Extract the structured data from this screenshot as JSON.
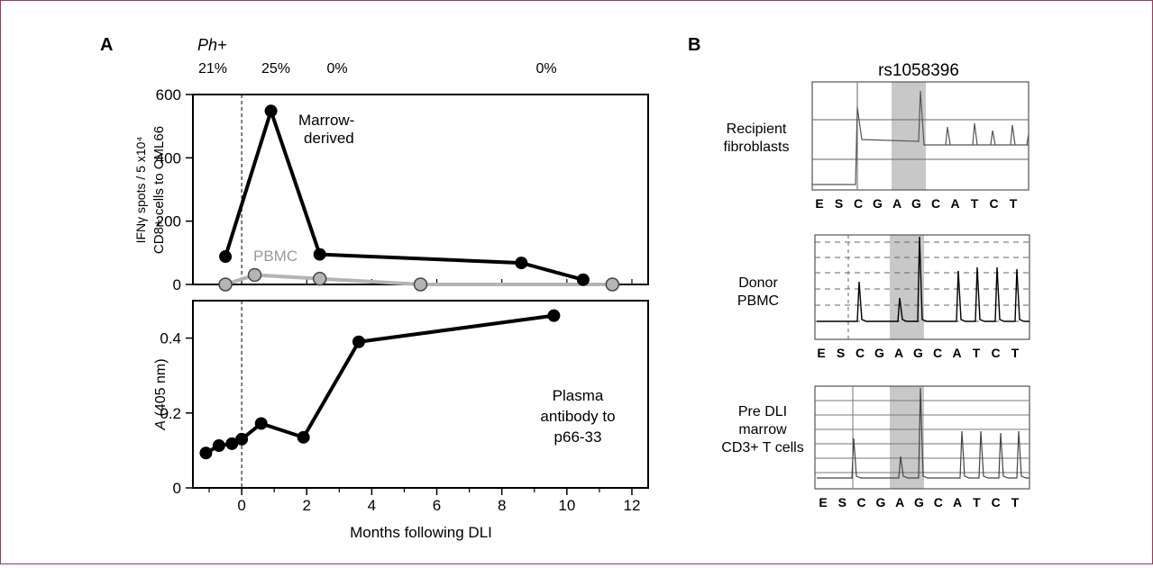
{
  "panels": {
    "a_label": "A",
    "b_label": "B"
  },
  "ph_row": {
    "label": "Ph+",
    "values": [
      "21%",
      "25%",
      "0%",
      "0%"
    ]
  },
  "colors": {
    "marrow": "#000000",
    "pbmc": "#b4b4b4",
    "shade": "#c8c8c8",
    "frame": "#a0365a"
  },
  "chart_data": [
    {
      "type": "line",
      "panel": "A (top)",
      "ylabel_line1": "IFNγ spots / 5 x10⁴",
      "ylabel_line2": "CD8+ cells to CML66",
      "xlim": [
        -1.5,
        12.5
      ],
      "ylim": [
        0,
        600
      ],
      "yticks": [
        0,
        200,
        400,
        600
      ],
      "series": [
        {
          "name": "Marrow-derived",
          "label_line1": "Marrow-",
          "label_line2": "derived",
          "x": [
            -0.5,
            0.9,
            2.4,
            8.6,
            10.5
          ],
          "y": [
            88,
            548,
            95,
            68,
            15
          ]
        },
        {
          "name": "PBMC",
          "x": [
            -0.5,
            0.4,
            2.4,
            5.5,
            11.4
          ],
          "y": [
            0,
            30,
            18,
            0,
            0
          ]
        }
      ]
    },
    {
      "type": "line",
      "panel": "A (bottom)",
      "ylabel_italic": "A",
      "ylabel_rest": " (405 nm)",
      "xlabel": "Months following DLI",
      "xlim": [
        -1.5,
        12.5
      ],
      "ylim": [
        0,
        0.5
      ],
      "xticks": [
        0,
        2,
        4,
        6,
        8,
        10,
        12
      ],
      "yticks": [
        "0",
        "0.2",
        "0.4"
      ],
      "series": [
        {
          "name": "Plasma antibody to p66-33",
          "label_lines": [
            "Plasma",
            "antibody to",
            "p66-33"
          ],
          "x": [
            -1.1,
            -0.7,
            -0.3,
            0.0,
            0.6,
            1.9,
            3.6,
            9.6
          ],
          "y": [
            0.093,
            0.113,
            0.118,
            0.13,
            0.172,
            0.135,
            0.39,
            0.46
          ]
        }
      ]
    }
  ],
  "sequencing": {
    "title": "rs1058396",
    "bases": [
      "E",
      "S",
      "C",
      "G",
      "A",
      "G",
      "C",
      "A",
      "T",
      "C",
      "T"
    ],
    "panels": [
      {
        "label_lines": [
          "Recipient",
          "fibroblasts"
        ]
      },
      {
        "label_lines": [
          "Donor",
          "PBMC"
        ]
      },
      {
        "label_lines": [
          "Pre DLI",
          "marrow",
          "CD3+ T cells"
        ]
      }
    ]
  }
}
